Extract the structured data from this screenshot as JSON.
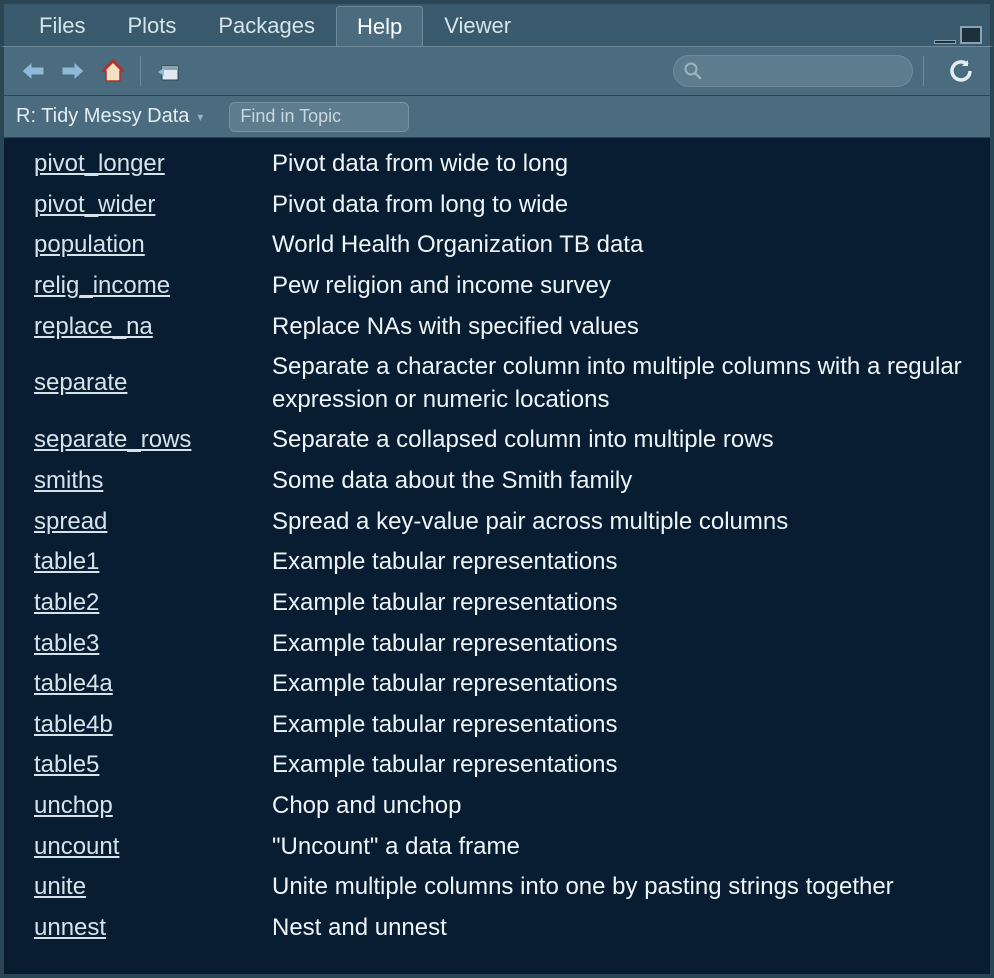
{
  "colors": {
    "frame": "#395a6d",
    "panel": "#4b6c7f",
    "content_bg": "#081d31",
    "text": "#e8eff4",
    "link": "#d7e3ea",
    "border_dark": "#2a4554",
    "border_light": "#6f8b9a",
    "input_bg": "#5d7c8d"
  },
  "tabs": {
    "items": [
      {
        "label": "Files",
        "active": false
      },
      {
        "label": "Plots",
        "active": false
      },
      {
        "label": "Packages",
        "active": false
      },
      {
        "label": "Help",
        "active": true
      },
      {
        "label": "Viewer",
        "active": false
      }
    ]
  },
  "toolbar": {
    "search_value": ""
  },
  "breadcrumb": {
    "label": "R: Tidy Messy Data",
    "find_placeholder": "Find in Topic"
  },
  "help": {
    "entries": [
      {
        "fn": "pivot_longer",
        "desc": "Pivot data from wide to long"
      },
      {
        "fn": "pivot_wider",
        "desc": "Pivot data from long to wide"
      },
      {
        "fn": "population",
        "desc": "World Health Organization TB data"
      },
      {
        "fn": "relig_income",
        "desc": "Pew religion and income survey"
      },
      {
        "fn": "replace_na",
        "desc": "Replace NAs with specified values"
      },
      {
        "fn": "separate",
        "desc": "Separate a character column into multiple columns with a regular expression or numeric locations"
      },
      {
        "fn": "separate_rows",
        "desc": "Separate a collapsed column into multiple rows"
      },
      {
        "fn": "smiths",
        "desc": "Some data about the Smith family"
      },
      {
        "fn": "spread",
        "desc": "Spread a key-value pair across multiple columns"
      },
      {
        "fn": "table1",
        "desc": "Example tabular representations"
      },
      {
        "fn": "table2",
        "desc": "Example tabular representations"
      },
      {
        "fn": "table3",
        "desc": "Example tabular representations"
      },
      {
        "fn": "table4a",
        "desc": "Example tabular representations"
      },
      {
        "fn": "table4b",
        "desc": "Example tabular representations"
      },
      {
        "fn": "table5",
        "desc": "Example tabular representations"
      },
      {
        "fn": "unchop",
        "desc": "Chop and unchop"
      },
      {
        "fn": "uncount",
        "desc": "\"Uncount\" a data frame"
      },
      {
        "fn": "unite",
        "desc": "Unite multiple columns into one by pasting strings together"
      },
      {
        "fn": "unnest",
        "desc": "Nest and unnest"
      }
    ]
  }
}
